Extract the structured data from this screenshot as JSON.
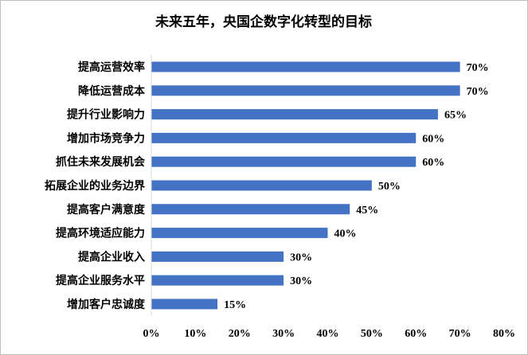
{
  "chart_data": {
    "type": "bar",
    "orientation": "horizontal",
    "title": "未来五年，央国企数字化转型的目标",
    "categories": [
      "提高运营效率",
      "降低运营成本",
      "提升行业影响力",
      "增加市场竞争力",
      "抓住未来发展机会",
      "拓展企业的业务边界",
      "提高客户满意度",
      "提高环境适应能力",
      "提高企业收入",
      "提高企业服务水平",
      "增加客户忠诚度"
    ],
    "values": [
      70,
      70,
      65,
      60,
      60,
      50,
      45,
      40,
      30,
      30,
      15
    ],
    "data_labels": [
      "70%",
      "70%",
      "65%",
      "60%",
      "60%",
      "50%",
      "45%",
      "40%",
      "30%",
      "30%",
      "15%"
    ],
    "x_ticks": [
      "0%",
      "10%",
      "20%",
      "30%",
      "40%",
      "50%",
      "60%",
      "70%",
      "80%"
    ],
    "xlim": [
      0,
      80
    ],
    "xlabel": "",
    "ylabel": "",
    "grid": false,
    "legend": "none",
    "bar_color": "#4472C4"
  }
}
